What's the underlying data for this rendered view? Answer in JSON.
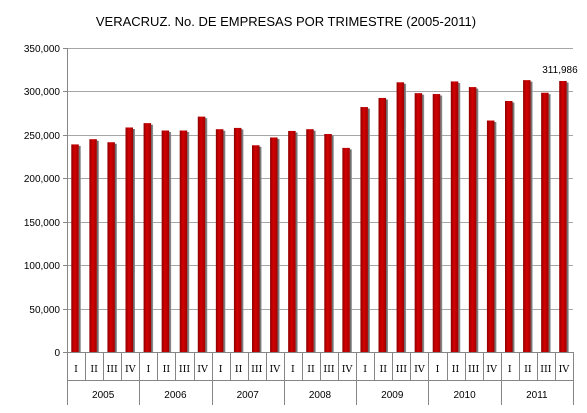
{
  "chart_data": {
    "type": "bar",
    "title": "VERACRUZ.  No. DE EMPRESAS POR TRIMESTRE (2005-2011)",
    "ylim": [
      0,
      350000
    ],
    "yticks": [
      0,
      50000,
      100000,
      150000,
      200000,
      250000,
      300000,
      350000
    ],
    "ytick_labels": [
      "0",
      "50,000",
      "100,000",
      "150,000",
      "200,000",
      "250,000",
      "300,000",
      "350,000"
    ],
    "quarter_labels": [
      "I",
      "II",
      "III",
      "IV"
    ],
    "years": [
      "2005",
      "2006",
      "2007",
      "2008",
      "2009",
      "2010",
      "2011"
    ],
    "values": [
      239000,
      245000,
      241500,
      258500,
      263500,
      255000,
      255000,
      271000,
      256500,
      258000,
      238000,
      247000,
      254500,
      256500,
      251000,
      235000,
      282000,
      292500,
      310500,
      298000,
      297000,
      311500,
      305000,
      266500,
      289000,
      313000,
      298500,
      311986
    ],
    "data_labels": [
      {
        "index": 27,
        "text": "311,986"
      }
    ],
    "grid": true,
    "bar_color": "#c00000",
    "legend": "none"
  }
}
